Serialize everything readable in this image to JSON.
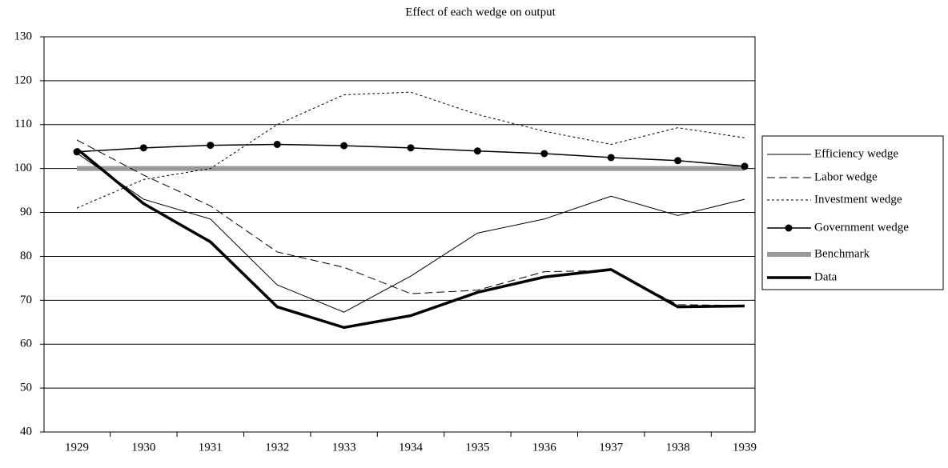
{
  "chart_data": {
    "type": "line",
    "title": "Effect of each wedge on output",
    "categories": [
      "1929",
      "1930",
      "1931",
      "1932",
      "1933",
      "1934",
      "1935",
      "1936",
      "1937",
      "1938",
      "1939"
    ],
    "ylim": [
      40,
      130
    ],
    "yticks": [
      40,
      50,
      60,
      70,
      80,
      90,
      100,
      110,
      120,
      130
    ],
    "grid": true,
    "legend": "right",
    "series": [
      {
        "name": "Efficiency wedge",
        "color": "#000000",
        "line_style": "solid",
        "line_width": 1,
        "marker": "none",
        "values": [
          103.5,
          93,
          88.5,
          73.5,
          67.3,
          75.5,
          85.3,
          88.5,
          93.7,
          89.3,
          93
        ]
      },
      {
        "name": "Labor wedge",
        "color": "#000000",
        "line_style": "dashed",
        "line_width": 1,
        "marker": "none",
        "values": [
          106.5,
          98.5,
          91.5,
          81,
          77.5,
          71.5,
          72.3,
          76.5,
          76.8,
          69,
          68.8
        ]
      },
      {
        "name": "Investment wedge",
        "color": "#000000",
        "line_style": "dotted",
        "line_width": 1,
        "marker": "none",
        "values": [
          91,
          97.5,
          100,
          110,
          116.8,
          117.4,
          112.3,
          108.5,
          105.5,
          109.3,
          107
        ]
      },
      {
        "name": "Government wedge",
        "color": "#000000",
        "line_style": "solid",
        "line_width": 1.5,
        "marker": "circle",
        "values": [
          103.8,
          104.7,
          105.3,
          105.5,
          105.2,
          104.7,
          104,
          103.4,
          102.5,
          101.8,
          100.5
        ]
      },
      {
        "name": "Benchmark",
        "color": "#999999",
        "line_style": "solid",
        "line_width": 6,
        "marker": "none",
        "values": [
          100,
          100,
          100,
          100,
          100,
          100,
          100,
          100,
          100,
          100,
          100
        ]
      },
      {
        "name": "Data",
        "color": "#000000",
        "line_style": "solid",
        "line_width": 3.5,
        "marker": "none",
        "values": [
          104.5,
          92,
          83.3,
          68.5,
          63.8,
          66.5,
          71.8,
          75.3,
          77,
          68.5,
          68.7
        ]
      }
    ]
  }
}
